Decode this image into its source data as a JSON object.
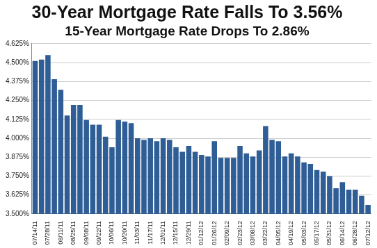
{
  "chart_data": {
    "type": "bar",
    "title": "30-Year Mortgage Rate Falls To 3.56%",
    "subtitle": "15-Year Mortgage Rate Drops To 2.86%",
    "categories": [
      "07/14/11",
      null,
      "07/28/11",
      null,
      "08/11/11",
      null,
      "08/25/11",
      null,
      "09/08/11",
      null,
      "09/22/11",
      null,
      "10/06/11",
      null,
      "10/20/11",
      null,
      "11/03/11",
      null,
      "11/17/11",
      null,
      "12/01/11",
      null,
      "12/15/11",
      null,
      "12/29/11",
      null,
      "01/12/12",
      null,
      "01/26/12",
      null,
      "02/09/12",
      null,
      "02/23/12",
      null,
      "03/08/12",
      null,
      "03/22/12",
      null,
      "04/05/12",
      null,
      "04/19/12",
      null,
      "05/03/12",
      null,
      "05/17/12",
      null,
      "05/31/12",
      null,
      "06/14/12",
      null,
      "06/28/12",
      null,
      "07/12/12"
    ],
    "values": [
      4.51,
      4.52,
      4.55,
      4.39,
      4.32,
      4.15,
      4.22,
      4.22,
      4.12,
      4.09,
      4.09,
      4.01,
      3.94,
      4.12,
      4.11,
      4.1,
      4.0,
      3.99,
      4.0,
      3.98,
      4.0,
      3.99,
      3.94,
      3.91,
      3.95,
      3.91,
      3.89,
      3.88,
      3.98,
      3.87,
      3.87,
      3.87,
      3.95,
      3.9,
      3.88,
      3.92,
      4.08,
      3.99,
      3.98,
      3.88,
      3.9,
      3.88,
      3.84,
      3.83,
      3.79,
      3.78,
      3.75,
      3.67,
      3.71,
      3.66,
      3.66,
      3.62,
      3.56
    ],
    "color": "#2f5d95",
    "ylim": [
      3.5,
      4.625
    ],
    "yticks": [
      {
        "value": 3.5,
        "label": "3.500%"
      },
      {
        "value": 3.625,
        "label": "3.625%"
      },
      {
        "value": 3.75,
        "label": "3.750%"
      },
      {
        "value": 3.875,
        "label": "3.875%"
      },
      {
        "value": 4.0,
        "label": "4.000%"
      },
      {
        "value": 4.125,
        "label": "4.125%"
      },
      {
        "value": 4.25,
        "label": "4.250%"
      },
      {
        "value": 4.375,
        "label": "4.375%"
      },
      {
        "value": 4.5,
        "label": "4.500%"
      },
      {
        "value": 4.625,
        "label": "4.625%"
      }
    ],
    "grid": true
  }
}
